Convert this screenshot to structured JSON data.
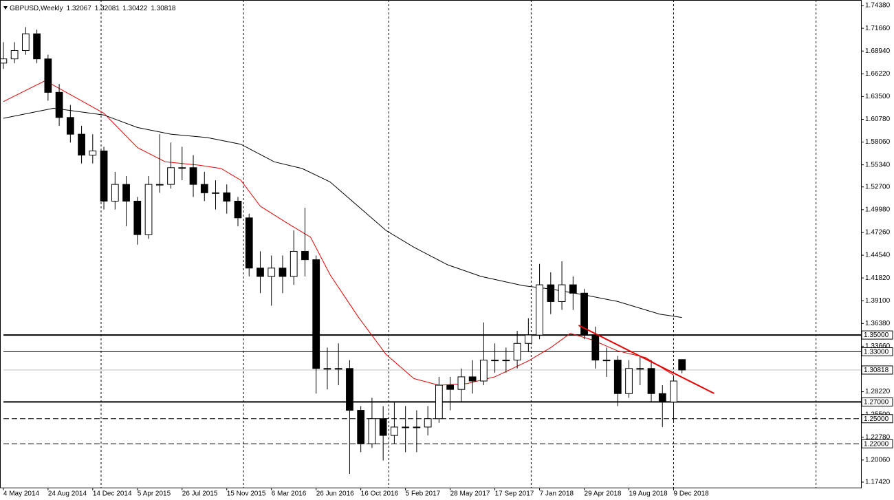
{
  "chart_data": {
    "type": "candlestick",
    "title": "GBPUSD,Weekly",
    "x": [
      0,
      4,
      8,
      12,
      16,
      20,
      24,
      28,
      32,
      36,
      40,
      44,
      48,
      52,
      56,
      60,
      64,
      68,
      72,
      76,
      80,
      84,
      88,
      92,
      96,
      100,
      104,
      108,
      112,
      116,
      120,
      124,
      128,
      132,
      136,
      140,
      144,
      148,
      152,
      156,
      160,
      164,
      168,
      172,
      176,
      180,
      184,
      188,
      192,
      196,
      200,
      204,
      208,
      212,
      216,
      220,
      224,
      228,
      232,
      236,
      240,
      243
    ],
    "open": [
      1.675,
      1.68,
      1.69,
      1.71,
      1.68,
      1.64,
      1.61,
      1.59,
      1.565,
      1.57,
      1.51,
      1.53,
      1.51,
      1.47,
      1.53,
      1.53,
      1.55,
      1.55,
      1.53,
      1.52,
      1.52,
      1.51,
      1.49,
      1.43,
      1.42,
      1.43,
      1.42,
      1.45,
      1.44,
      1.31,
      1.31,
      1.31,
      1.26,
      1.22,
      1.25,
      1.23,
      1.24,
      1.24,
      1.24,
      1.25,
      1.29,
      1.285,
      1.3,
      1.295,
      1.32,
      1.32,
      1.32,
      1.34,
      1.35,
      1.41,
      1.39,
      1.41,
      1.4,
      1.35,
      1.32,
      1.32,
      1.28,
      1.31,
      1.31,
      1.28,
      1.27,
      1.32067
    ],
    "high": [
      1.7,
      1.7,
      1.718,
      1.715,
      1.685,
      1.65,
      1.625,
      1.6,
      1.59,
      1.575,
      1.545,
      1.54,
      1.515,
      1.54,
      1.59,
      1.58,
      1.575,
      1.565,
      1.545,
      1.535,
      1.53,
      1.515,
      1.495,
      1.45,
      1.445,
      1.445,
      1.475,
      1.502,
      1.445,
      1.335,
      1.34,
      1.32,
      1.265,
      1.275,
      1.265,
      1.27,
      1.265,
      1.26,
      1.265,
      1.3,
      1.3,
      1.31,
      1.32,
      1.365,
      1.34,
      1.335,
      1.355,
      1.37,
      1.435,
      1.425,
      1.438,
      1.42,
      1.405,
      1.36,
      1.335,
      1.325,
      1.32,
      1.325,
      1.32,
      1.29,
      1.3,
      1.32081
    ],
    "low": [
      1.668,
      1.675,
      1.685,
      1.675,
      1.63,
      1.6,
      1.58,
      1.555,
      1.555,
      1.5,
      1.5,
      1.48,
      1.458,
      1.465,
      1.52,
      1.525,
      1.535,
      1.515,
      1.51,
      1.5,
      1.495,
      1.48,
      1.42,
      1.4,
      1.385,
      1.4,
      1.41,
      1.42,
      1.28,
      1.285,
      1.29,
      1.184,
      1.21,
      1.215,
      1.2,
      1.22,
      1.21,
      1.21,
      1.23,
      1.245,
      1.26,
      1.27,
      1.28,
      1.29,
      1.305,
      1.305,
      1.31,
      1.33,
      1.345,
      1.375,
      1.38,
      1.38,
      1.345,
      1.31,
      1.3,
      1.265,
      1.275,
      1.29,
      1.27,
      1.24,
      1.245,
      1.30422
    ],
    "close": [
      1.68,
      1.69,
      1.71,
      1.68,
      1.64,
      1.61,
      1.59,
      1.565,
      1.57,
      1.51,
      1.53,
      1.51,
      1.47,
      1.53,
      1.53,
      1.55,
      1.55,
      1.53,
      1.52,
      1.52,
      1.51,
      1.49,
      1.43,
      1.42,
      1.43,
      1.42,
      1.45,
      1.44,
      1.31,
      1.31,
      1.31,
      1.26,
      1.22,
      1.25,
      1.23,
      1.24,
      1.24,
      1.24,
      1.25,
      1.29,
      1.285,
      1.3,
      1.295,
      1.32,
      1.32,
      1.32,
      1.34,
      1.35,
      1.41,
      1.39,
      1.41,
      1.4,
      1.35,
      1.32,
      1.32,
      1.28,
      1.31,
      1.31,
      1.28,
      1.27,
      1.295,
      1.30818
    ],
    "up_color": "#ffffff",
    "down_color": "#000000",
    "wick_color": "#000000",
    "moving_averages": [
      {
        "color": "#e00000",
        "x": [
          0,
          15,
          36,
          48,
          58,
          70,
          78,
          85,
          92,
          102,
          110,
          117,
          127,
          137,
          147,
          156,
          166,
          176,
          188,
          196,
          203,
          211,
          220,
          230,
          240
        ],
        "values": [
          1.629,
          1.654,
          1.615,
          1.574,
          1.557,
          1.553,
          1.549,
          1.535,
          1.504,
          1.483,
          1.467,
          1.422,
          1.372,
          1.327,
          1.298,
          1.29,
          1.292,
          1.3,
          1.319,
          1.335,
          1.352,
          1.344,
          1.331,
          1.323,
          1.302
        ]
      },
      {
        "color": "#000000",
        "x": [
          0,
          18,
          36,
          48,
          60,
          73,
          85,
          97,
          107,
          117,
          127,
          137,
          147,
          159,
          171,
          186,
          196,
          208,
          220,
          235,
          243
        ],
        "values": [
          1.609,
          1.621,
          1.613,
          1.598,
          1.59,
          1.586,
          1.578,
          1.557,
          1.549,
          1.533,
          1.504,
          1.475,
          1.455,
          1.434,
          1.42,
          1.409,
          1.405,
          1.398,
          1.39,
          1.375,
          1.371
        ]
      }
    ],
    "trendline": {
      "color": "#e00000",
      "x": [
        206,
        254.5
      ],
      "values": [
        1.3616,
        1.2802
      ]
    },
    "levels": [
      {
        "value": 1.35,
        "label": "1.35000",
        "dash": "none",
        "width": 2,
        "color": "#000000"
      },
      {
        "value": 1.33,
        "label": "1.33000",
        "dash": "none",
        "width": 1,
        "color": "#000000"
      },
      {
        "value": 1.30818,
        "label": "1.30818",
        "dash": "none",
        "width": 1,
        "color": "#c0c0c0"
      },
      {
        "value": 1.27,
        "label": "1.27000",
        "dash": "none",
        "width": 2,
        "color": "#000000"
      },
      {
        "value": 1.25,
        "label": "1.25000",
        "dash": "8,4",
        "width": 1,
        "color": "#000000"
      },
      {
        "value": 1.22,
        "label": "1.22000",
        "dash": "8,4",
        "width": 1,
        "color": "#000000"
      }
    ],
    "xlim": [
      -1.2,
      307.1
    ],
    "ylim": [
      1.1676,
      1.7504
    ],
    "xticks": [
      {
        "value": 0,
        "label": "4 May 2014"
      },
      {
        "value": 16,
        "label": "24 Aug 2014"
      },
      {
        "value": 32,
        "label": "14 Dec 2014"
      },
      {
        "value": 48,
        "label": "5 Apr 2015"
      },
      {
        "value": 64,
        "label": "26 Jul 2015"
      },
      {
        "value": 80,
        "label": "15 Nov 2015"
      },
      {
        "value": 96,
        "label": "6 Mar 2016"
      },
      {
        "value": 112,
        "label": "26 Jun 2016"
      },
      {
        "value": 128,
        "label": "16 Oct 2016"
      },
      {
        "value": 144,
        "label": "5 Feb 2017"
      },
      {
        "value": 160,
        "label": "28 May 2017"
      },
      {
        "value": 176,
        "label": "17 Sep 2017"
      },
      {
        "value": 192,
        "label": "7 Jan 2018"
      },
      {
        "value": 208,
        "label": "29 Apr 2018"
      },
      {
        "value": 224,
        "label": "19 Aug 2018"
      },
      {
        "value": 240,
        "label": "9 Dec 2018"
      }
    ],
    "xgrid": [
      35,
      86,
      138,
      189,
      240,
      291
    ],
    "yticks": [
      {
        "value": 1.7438,
        "label": "1.74380"
      },
      {
        "value": 1.7166,
        "label": "1.71660"
      },
      {
        "value": 1.6894,
        "label": "1.68940"
      },
      {
        "value": 1.6622,
        "label": "1.66220"
      },
      {
        "value": 1.635,
        "label": "1.63500"
      },
      {
        "value": 1.6078,
        "label": "1.60780"
      },
      {
        "value": 1.5806,
        "label": "1.58060"
      },
      {
        "value": 1.5534,
        "label": "1.55340"
      },
      {
        "value": 1.527,
        "label": "1.52700"
      },
      {
        "value": 1.4998,
        "label": "1.49980"
      },
      {
        "value": 1.4726,
        "label": "1.47260"
      },
      {
        "value": 1.4454,
        "label": "1.44540"
      },
      {
        "value": 1.4182,
        "label": "1.41820"
      },
      {
        "value": 1.391,
        "label": "1.39100"
      },
      {
        "value": 1.3638,
        "label": "1.36380"
      },
      {
        "value": 1.3366,
        "label": "1.33660"
      },
      {
        "value": 1.2822,
        "label": "1.28220"
      },
      {
        "value": 1.255,
        "label": "1.25500"
      },
      {
        "value": 1.2278,
        "label": "1.22780"
      },
      {
        "value": 1.2006,
        "label": "1.20060"
      },
      {
        "value": 1.1742,
        "label": "1.17420"
      }
    ],
    "grid": true
  }
}
